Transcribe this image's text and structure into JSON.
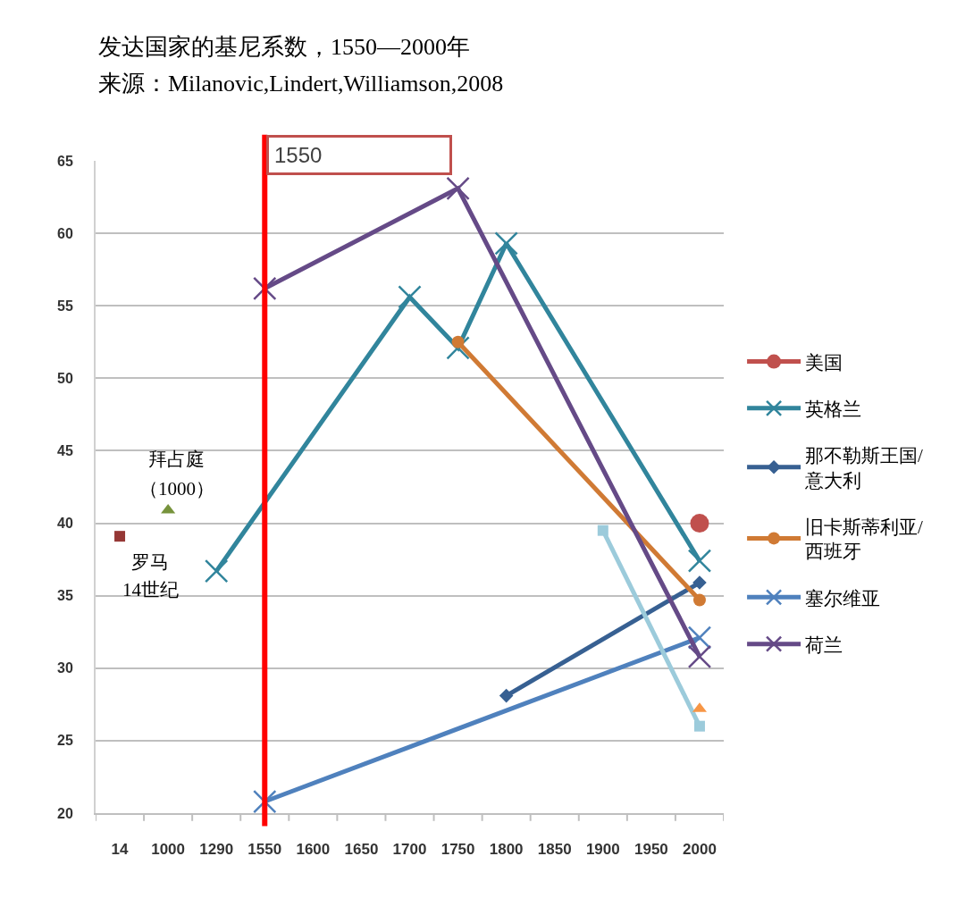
{
  "chart_data": {
    "type": "line",
    "title": "发达国家的基尼系数，1550—2000年",
    "subtitle": "来源：Milanovic,Lindert,Williamson,2008",
    "categories": [
      "14",
      "1000",
      "1290",
      "1550",
      "1600",
      "1650",
      "1700",
      "1750",
      "1800",
      "1850",
      "1900",
      "1950",
      "2000"
    ],
    "ylim": [
      20,
      65
    ],
    "yticks": [
      20,
      25,
      30,
      35,
      40,
      45,
      50,
      55,
      60,
      65
    ],
    "grid": "y",
    "legend": "right",
    "series": [
      {
        "name": "美国",
        "color": "#c0504d",
        "marker": "circle",
        "values": [
          null,
          null,
          null,
          null,
          null,
          null,
          null,
          null,
          null,
          null,
          null,
          null,
          40.0
        ]
      },
      {
        "name": "英格兰",
        "color": "#31859c",
        "marker": "cross",
        "values": [
          null,
          null,
          36.7,
          null,
          null,
          null,
          55.6,
          52.1,
          59.3,
          null,
          null,
          null,
          37.4
        ]
      },
      {
        "name": "那不勒斯王国/\n意大利",
        "color": "#376092",
        "marker": "diamond",
        "values": [
          null,
          null,
          null,
          null,
          null,
          null,
          null,
          null,
          28.1,
          null,
          null,
          null,
          35.9
        ]
      },
      {
        "name": "旧卡斯蒂利亚/\n西班牙",
        "color": "#d07a34",
        "marker": "circle",
        "values": [
          null,
          null,
          null,
          null,
          null,
          null,
          null,
          52.5,
          null,
          null,
          null,
          null,
          34.7
        ]
      },
      {
        "name": "塞尔维亚",
        "color": "#4f81bd",
        "marker": "cross",
        "values": [
          null,
          null,
          null,
          20.8,
          null,
          null,
          null,
          null,
          null,
          null,
          null,
          null,
          32.1
        ]
      },
      {
        "name": "荷兰",
        "color": "#654a87",
        "marker": "cross",
        "values": [
          null,
          null,
          null,
          56.2,
          null,
          null,
          null,
          63.1,
          null,
          null,
          null,
          null,
          30.8
        ]
      },
      {
        "color": "#9ccbdb",
        "marker": "square",
        "values": [
          null,
          null,
          null,
          null,
          null,
          null,
          null,
          null,
          null,
          null,
          39.5,
          null,
          26.0
        ]
      },
      {
        "type": "scatter",
        "color": "#f79646",
        "marker": "triangle",
        "values": [
          null,
          null,
          null,
          null,
          null,
          null,
          null,
          null,
          null,
          null,
          null,
          null,
          27.2
        ]
      },
      {
        "type": "scatter",
        "color": "#77933c",
        "marker": "triangle",
        "values": [
          null,
          40.9,
          null,
          null,
          null,
          null,
          null,
          null,
          null,
          null,
          null,
          null,
          null
        ]
      },
      {
        "type": "scatter",
        "color": "#953735",
        "marker": "square",
        "values": [
          39.1,
          null,
          null,
          null,
          null,
          null,
          null,
          null,
          null,
          null,
          null,
          null,
          null
        ]
      }
    ],
    "ref_lines": [
      {
        "axis": "x",
        "value": "1550",
        "label": "1550",
        "color": "#ff0000"
      }
    ],
    "annotations": [
      "拜占庭",
      "（1000）",
      "罗马",
      "14世纪"
    ]
  }
}
